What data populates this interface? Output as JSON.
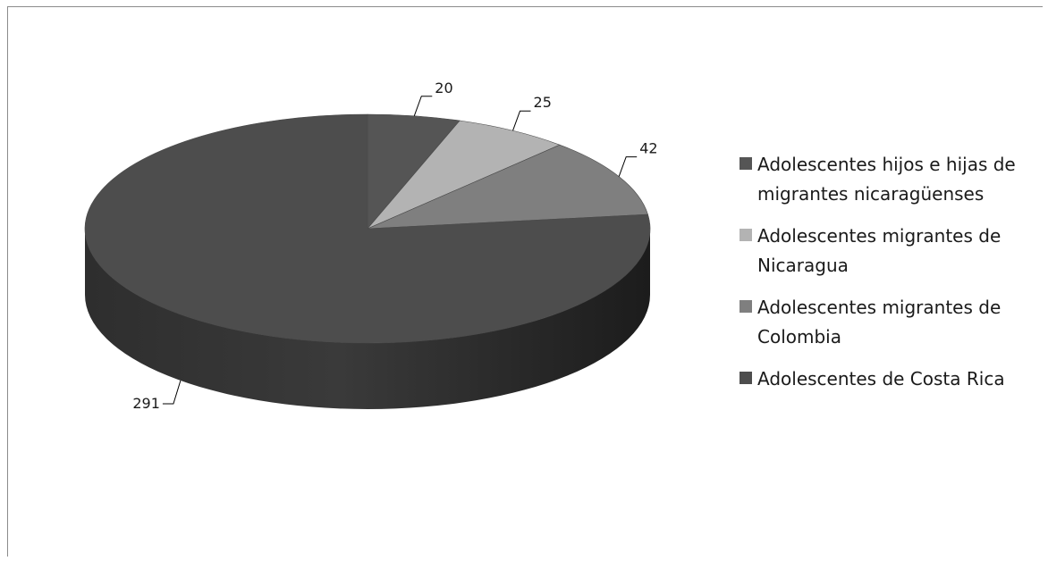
{
  "chart_data": {
    "type": "pie",
    "style": "3d",
    "categories": [
      "Adolescentes hijos e hijas de migrantes nicaragüenses",
      "Adolescentes migrantes de Nicaragua",
      "Adolescentes migrantes de Colombia",
      "Adolescentes de Costa Rica"
    ],
    "values": [
      20,
      25,
      42,
      291
    ],
    "data_labels": [
      "20",
      "25",
      "42",
      "291"
    ],
    "colors": [
      "#555555",
      "#b3b3b3",
      "#7f7f7f",
      "#4d4d4d"
    ],
    "legend_position": "right"
  },
  "legend": {
    "items": [
      {
        "label": "Adolescentes hijos e hijas de migrantes nicaragüenses",
        "color": "#555555"
      },
      {
        "label": "Adolescentes migrantes de Nicaragua",
        "color": "#b3b3b3"
      },
      {
        "label": "Adolescentes migrantes de Colombia",
        "color": "#7f7f7f"
      },
      {
        "label": "Adolescentes de Costa Rica",
        "color": "#4d4d4d"
      }
    ]
  }
}
